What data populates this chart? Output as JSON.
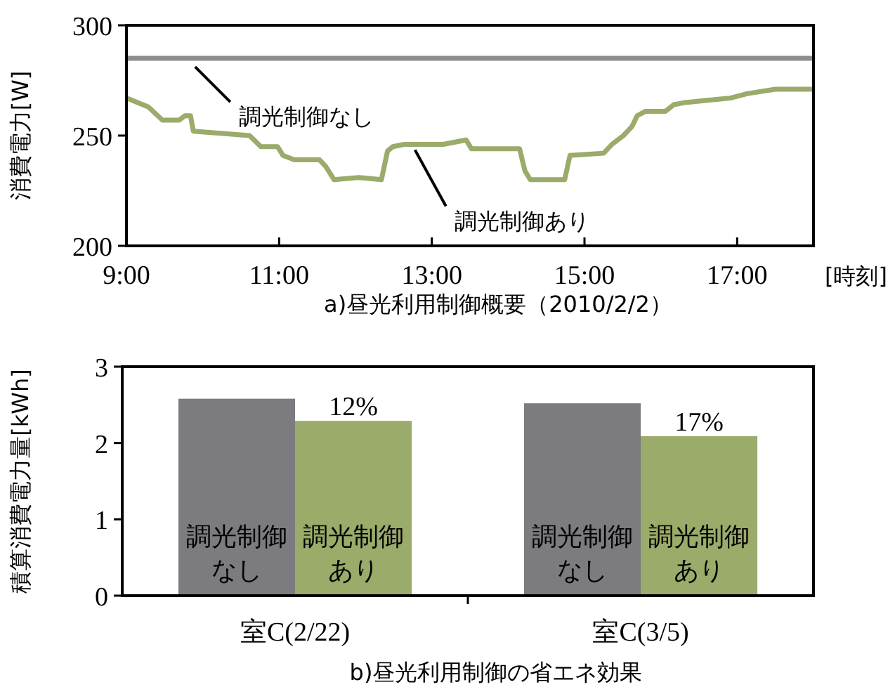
{
  "chart_data": [
    {
      "type": "line",
      "title": "a)昼光利用制御概要（2010/2/2）",
      "ylabel": "消費電力[W]",
      "xlabel": "[時刻]",
      "xlim": [
        9,
        18
      ],
      "ylim": [
        200,
        300
      ],
      "xticks": [
        {
          "value": 9,
          "label": "9:00"
        },
        {
          "value": 11,
          "label": "11:00"
        },
        {
          "value": 13,
          "label": "13:00"
        },
        {
          "value": 15,
          "label": "15:00"
        },
        {
          "value": 17,
          "label": "17:00"
        }
      ],
      "yticks": [
        200,
        250,
        300
      ],
      "grid": false,
      "series": [
        {
          "name": "調光制御なし",
          "color": "#8c8c8c",
          "x": [
            9,
            18
          ],
          "values": [
            285,
            285
          ]
        },
        {
          "name": "調光制御あり",
          "color": "#9aab6a",
          "x": [
            9,
            9.287,
            9.471,
            9.692,
            9.766,
            9.839,
            9.876,
            10.613,
            10.76,
            10.98,
            11.05,
            11.2,
            11.53,
            11.61,
            11.72,
            12.05,
            12.34,
            12.42,
            12.49,
            12.64,
            12.78,
            13.15,
            13.45,
            13.52,
            14.15,
            14.22,
            14.29,
            14.74,
            14.81,
            15.25,
            15.36,
            15.51,
            15.62,
            15.69,
            15.8,
            16.06,
            16.17,
            16.32,
            16.61,
            16.91,
            17.13,
            17.5,
            18
          ],
          "values": [
            267,
            263,
            257,
            257,
            259,
            259,
            252,
            250,
            245,
            245,
            241,
            239,
            239,
            236,
            230,
            231,
            230,
            243,
            245,
            246,
            246,
            246,
            248,
            244,
            244,
            234,
            230,
            230,
            241,
            242,
            246,
            250,
            254,
            259,
            261,
            261,
            264,
            265,
            266,
            267,
            269,
            271,
            271
          ]
        }
      ]
    },
    {
      "type": "bar",
      "title": "b)昼光利用制御の省エネ効果",
      "ylabel": "積算消費電力量[kWh]",
      "categories": [
        "室C(2/22)",
        "室C(3/5)"
      ],
      "ylim": [
        0,
        3
      ],
      "yticks": [
        0,
        1,
        2,
        3
      ],
      "grid": false,
      "annotations": [
        {
          "text": "12%",
          "x": "室C(2/22)",
          "y": 2.29
        },
        {
          "text": "17%",
          "x": "室C(3/5)",
          "y": 2.09
        }
      ],
      "series": [
        {
          "name": "調光制御なし",
          "color": "#7b7b80",
          "values": [
            2.58,
            2.52
          ]
        },
        {
          "name": "調光制御あり",
          "color": "#9aab6a",
          "values": [
            2.29,
            2.09
          ]
        }
      ]
    }
  ]
}
